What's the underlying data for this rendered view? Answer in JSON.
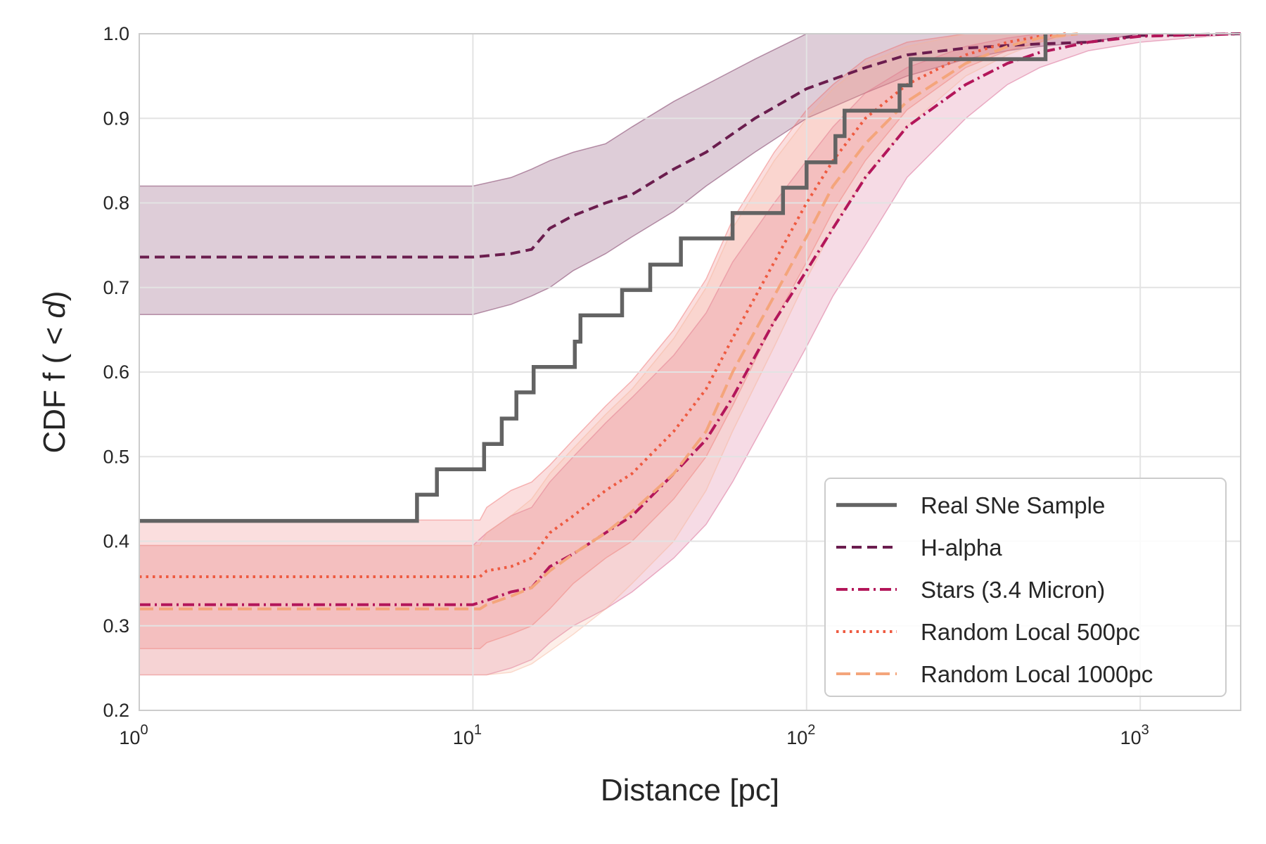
{
  "chart_data": {
    "type": "line",
    "title": "",
    "xlabel": "Distance [pc]",
    "ylabel_parts": [
      "CDF f ( < ",
      "d",
      ")"
    ],
    "xscale": "log",
    "xlim": [
      1,
      2000
    ],
    "ylim": [
      0.2,
      1.0
    ],
    "grid": true,
    "legend_position": "lower-right",
    "x_ticks": [
      {
        "value": 1,
        "base": "10",
        "exp": "0"
      },
      {
        "value": 10,
        "base": "10",
        "exp": "1"
      },
      {
        "value": 100,
        "base": "10",
        "exp": "2"
      },
      {
        "value": 1000,
        "base": "10",
        "exp": "3"
      }
    ],
    "y_ticks": [
      {
        "value": 0.2,
        "label": "0.2"
      },
      {
        "value": 0.3,
        "label": "0.3"
      },
      {
        "value": 0.4,
        "label": "0.4"
      },
      {
        "value": 0.5,
        "label": "0.5"
      },
      {
        "value": 0.6,
        "label": "0.6"
      },
      {
        "value": 0.7,
        "label": "0.7"
      },
      {
        "value": 0.8,
        "label": "0.8"
      },
      {
        "value": 0.9,
        "label": "0.9"
      },
      {
        "value": 1.0,
        "label": "1.0"
      }
    ],
    "series": [
      {
        "name": "Real SNe Sample",
        "color": "#636363",
        "dash": "solid",
        "step": true,
        "x": [
          1,
          6.8,
          6.8,
          7.8,
          7.8,
          10.8,
          10.8,
          12.2,
          12.2,
          13.5,
          13.5,
          15.2,
          15.2,
          20.2,
          20.2,
          21.0,
          21.0,
          28.0,
          28.0,
          34.0,
          34.0,
          42.0,
          42.0,
          60.0,
          60.0,
          85.0,
          85.0,
          100.0,
          100.0,
          122.0,
          122.0,
          130.0,
          130.0,
          190.0,
          190.0,
          205.0,
          205.0,
          520.0,
          520.0
        ],
        "y": [
          0.424,
          0.424,
          0.455,
          0.455,
          0.485,
          0.485,
          0.515,
          0.515,
          0.545,
          0.545,
          0.576,
          0.576,
          0.606,
          0.606,
          0.636,
          0.636,
          0.667,
          0.667,
          0.697,
          0.697,
          0.727,
          0.727,
          0.758,
          0.758,
          0.788,
          0.788,
          0.818,
          0.818,
          0.848,
          0.848,
          0.879,
          0.879,
          0.909,
          0.909,
          0.939,
          0.939,
          0.97,
          0.97,
          1.0
        ]
      },
      {
        "name": "H-alpha",
        "color": "#6b1d4e",
        "dash": "dashed",
        "x": [
          1,
          10,
          13,
          15,
          17,
          20,
          25,
          30,
          40,
          50,
          70,
          100,
          150,
          200,
          300,
          400,
          500,
          700,
          1000,
          2000
        ],
        "y": [
          0.736,
          0.736,
          0.74,
          0.745,
          0.77,
          0.785,
          0.8,
          0.81,
          0.84,
          0.86,
          0.9,
          0.935,
          0.96,
          0.975,
          0.983,
          0.986,
          0.988,
          0.99,
          0.998,
          1.0
        ],
        "band_upper": [
          0.82,
          0.82,
          0.83,
          0.84,
          0.85,
          0.86,
          0.87,
          0.89,
          0.92,
          0.94,
          0.97,
          1.0,
          1.0,
          1.0,
          1.0,
          1.0,
          1.0,
          1.0,
          1.0,
          1.0
        ],
        "band_lower": [
          0.668,
          0.668,
          0.68,
          0.69,
          0.7,
          0.72,
          0.74,
          0.76,
          0.79,
          0.82,
          0.86,
          0.9,
          0.93,
          0.95,
          0.97,
          0.98,
          0.985,
          0.99,
          1.0,
          1.0
        ],
        "band_color": "#6b1d4e"
      },
      {
        "name": "Stars (3.4 Micron)",
        "color": "#b3165a",
        "dash": "dashdot",
        "x": [
          1,
          10,
          11,
          13,
          15,
          17,
          20,
          25,
          30,
          40,
          50,
          60,
          80,
          100,
          120,
          150,
          200,
          300,
          400,
          500,
          700,
          1000,
          2000
        ],
        "y": [
          0.325,
          0.325,
          0.33,
          0.34,
          0.345,
          0.37,
          0.385,
          0.41,
          0.43,
          0.48,
          0.52,
          0.57,
          0.66,
          0.72,
          0.77,
          0.83,
          0.89,
          0.94,
          0.965,
          0.978,
          0.99,
          0.997,
          1.0
        ],
        "band_upper": [
          0.395,
          0.395,
          0.41,
          0.43,
          0.44,
          0.47,
          0.5,
          0.54,
          0.57,
          0.62,
          0.67,
          0.73,
          0.8,
          0.85,
          0.89,
          0.93,
          0.96,
          0.985,
          0.995,
          1.0,
          1.0,
          1.0,
          1.0
        ],
        "band_lower": [
          0.242,
          0.242,
          0.242,
          0.25,
          0.26,
          0.28,
          0.3,
          0.32,
          0.34,
          0.38,
          0.42,
          0.47,
          0.56,
          0.63,
          0.69,
          0.75,
          0.83,
          0.9,
          0.94,
          0.96,
          0.98,
          0.99,
          1.0
        ],
        "band_color": "#d45a8a"
      },
      {
        "name": "Random Local 500pc",
        "color": "#ee5a40",
        "dash": "dotted",
        "x": [
          1,
          10.5,
          11,
          13,
          15,
          17,
          20,
          25,
          30,
          40,
          50,
          60,
          80,
          100,
          120,
          150,
          200,
          300,
          400,
          500,
          600
        ],
        "y": [
          0.358,
          0.358,
          0.365,
          0.37,
          0.38,
          0.41,
          0.43,
          0.46,
          0.48,
          0.53,
          0.58,
          0.64,
          0.73,
          0.8,
          0.85,
          0.9,
          0.94,
          0.975,
          0.99,
          0.997,
          1.0
        ],
        "band_upper": [
          0.425,
          0.425,
          0.44,
          0.46,
          0.47,
          0.49,
          0.52,
          0.56,
          0.59,
          0.65,
          0.71,
          0.78,
          0.86,
          0.91,
          0.94,
          0.97,
          0.99,
          1.0,
          1.0,
          1.0,
          1.0
        ],
        "band_lower": [
          0.273,
          0.273,
          0.28,
          0.29,
          0.3,
          0.32,
          0.35,
          0.38,
          0.4,
          0.45,
          0.5,
          0.56,
          0.66,
          0.73,
          0.79,
          0.85,
          0.91,
          0.96,
          0.98,
          0.99,
          1.0
        ],
        "band_color": "#ee6a6a"
      },
      {
        "name": "Random Local 1000pc",
        "color": "#f4a57b",
        "dash": "longdash",
        "x": [
          1,
          10.5,
          11,
          13,
          15,
          17,
          20,
          25,
          30,
          40,
          50,
          60,
          80,
          100,
          120,
          150,
          200,
          300,
          400,
          500,
          650
        ],
        "y": [
          0.32,
          0.32,
          0.325,
          0.335,
          0.345,
          0.365,
          0.385,
          0.41,
          0.435,
          0.48,
          0.53,
          0.6,
          0.69,
          0.76,
          0.82,
          0.87,
          0.92,
          0.965,
          0.985,
          0.995,
          1.0
        ],
        "band_upper": [
          0.395,
          0.395,
          0.41,
          0.43,
          0.45,
          0.48,
          0.51,
          0.55,
          0.58,
          0.64,
          0.7,
          0.77,
          0.85,
          0.9,
          0.935,
          0.965,
          0.985,
          1.0,
          1.0,
          1.0,
          1.0
        ],
        "band_lower": [
          0.242,
          0.242,
          0.242,
          0.245,
          0.255,
          0.27,
          0.29,
          0.32,
          0.35,
          0.4,
          0.46,
          0.53,
          0.63,
          0.71,
          0.77,
          0.83,
          0.89,
          0.95,
          0.975,
          0.99,
          1.0
        ],
        "band_color": "#f7b49a"
      }
    ]
  }
}
